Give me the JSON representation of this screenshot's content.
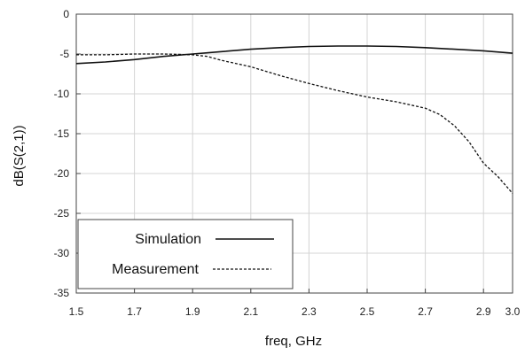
{
  "chart_data": {
    "type": "line",
    "xlabel": "freq, GHz",
    "ylabel": "dB(S(2,1))",
    "xlim": [
      1.5,
      3.0
    ],
    "ylim": [
      -35,
      0
    ],
    "x_ticks": [
      "1.5",
      "1.7",
      "1.9",
      "2.1",
      "2.3",
      "2.5",
      "2.7",
      "2.9",
      "3.0"
    ],
    "y_ticks": [
      "0",
      "-5",
      "-10",
      "-15",
      "-20",
      "-25",
      "-30",
      "-35"
    ],
    "grid": true,
    "legend_position": "bottom-left",
    "series": [
      {
        "name": "Simulation",
        "style": "solid",
        "color": "#111111",
        "x": [
          1.5,
          1.6,
          1.7,
          1.8,
          1.9,
          2.0,
          2.1,
          2.2,
          2.3,
          2.4,
          2.5,
          2.6,
          2.7,
          2.8,
          2.9,
          3.0
        ],
        "y": [
          -6.2,
          -6.0,
          -5.7,
          -5.3,
          -5.0,
          -4.7,
          -4.4,
          -4.2,
          -4.05,
          -4.0,
          -4.0,
          -4.05,
          -4.2,
          -4.4,
          -4.6,
          -4.9
        ]
      },
      {
        "name": "Measurement",
        "style": "dashed",
        "color": "#111111",
        "x": [
          1.5,
          1.6,
          1.7,
          1.8,
          1.9,
          1.95,
          2.0,
          2.1,
          2.2,
          2.3,
          2.4,
          2.5,
          2.6,
          2.7,
          2.75,
          2.8,
          2.85,
          2.9,
          2.95,
          3.0
        ],
        "y": [
          -5.1,
          -5.1,
          -5.0,
          -5.0,
          -5.1,
          -5.3,
          -5.8,
          -6.6,
          -7.7,
          -8.7,
          -9.6,
          -10.4,
          -11.0,
          -11.8,
          -12.6,
          -14.0,
          -16.0,
          -18.7,
          -20.4,
          -22.5
        ]
      }
    ]
  }
}
